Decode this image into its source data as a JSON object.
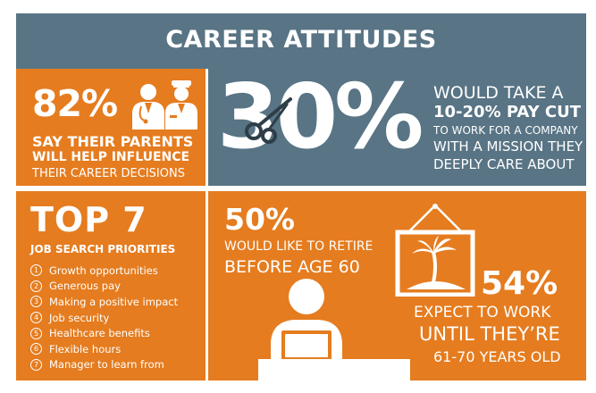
{
  "header": {
    "title": "CAREER ATTITUDES"
  },
  "parents": {
    "stat": "82%",
    "line1": "SAY THEIR PARENTS",
    "line2": "WILL HELP INFLUENCE",
    "line3": "THEIR CAREER DECISIONS",
    "icon": "parents-people-icon"
  },
  "paycut": {
    "stat": "30%",
    "line1": "WOULD TAKE A",
    "line2": "10-20% PAY CUT",
    "line3": "TO WORK FOR A COMPANY",
    "line4": "WITH A MISSION THEY",
    "line5": "DEEPLY CARE ABOUT",
    "icon": "scissors-icon"
  },
  "priorities": {
    "title": "TOP 7",
    "subtitle": "JOB SEARCH PRIORITIES",
    "items": [
      {
        "num": "1",
        "label": "Growth opportunities"
      },
      {
        "num": "2",
        "label": "Generous pay"
      },
      {
        "num": "3",
        "label": "Making a positive impact"
      },
      {
        "num": "4",
        "label": "Job security"
      },
      {
        "num": "5",
        "label": "Healthcare benefits"
      },
      {
        "num": "6",
        "label": "Flexible hours"
      },
      {
        "num": "7",
        "label": "Manager to learn from"
      }
    ]
  },
  "retire": {
    "stat": "50%",
    "line1": "WOULD LIKE TO RETIRE",
    "line2": "BEFORE AGE 60",
    "icon": "beach-picture-icon"
  },
  "work": {
    "stat": "54%",
    "line1": "EXPECT TO WORK",
    "line2": "UNTIL THEY’RE",
    "line3": "61-70 YEARS OLD",
    "icon": "worker-at-desk-icon"
  },
  "colors": {
    "blue": "#587485",
    "orange": "#e57c1f",
    "text": "#ffffff"
  }
}
